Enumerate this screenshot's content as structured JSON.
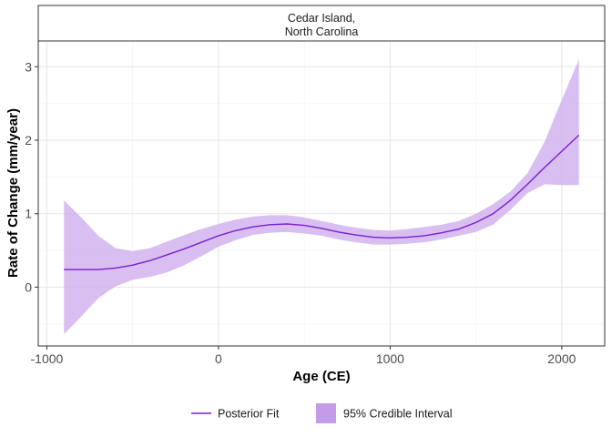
{
  "chart_data": {
    "type": "line",
    "panel_title": "Cedar Island,\nNorth Carolina",
    "panel_title_lines": [
      "Cedar Island,",
      "North Carolina"
    ],
    "xlabel": "Age (CE)",
    "ylabel": "Rate of Change (mm/year)",
    "xlim": [
      -1050,
      2250
    ],
    "ylim": [
      -0.8,
      3.35
    ],
    "x_ticks": [
      -1000,
      0,
      1000,
      2000
    ],
    "x_tick_labels": [
      "-1000",
      "0",
      "1000",
      "2000"
    ],
    "y_ticks": [
      0,
      1,
      2,
      3
    ],
    "y_tick_labels": [
      "0",
      "1",
      "2",
      "3"
    ],
    "grid": true,
    "legend_position": "bottom",
    "colors": {
      "line": "#7b1fd1",
      "band": "#d2b3ef",
      "legend_band": "#c39be6"
    },
    "series": [
      {
        "name": "Posterior Fit",
        "kind": "line",
        "x": [
          -900,
          -800,
          -700,
          -600,
          -500,
          -400,
          -300,
          -200,
          -100,
          0,
          100,
          200,
          300,
          400,
          500,
          600,
          700,
          800,
          900,
          1000,
          1100,
          1200,
          1300,
          1400,
          1500,
          1600,
          1700,
          1800,
          1900,
          2000,
          2100
        ],
        "y": [
          0.24,
          0.24,
          0.24,
          0.26,
          0.3,
          0.36,
          0.44,
          0.52,
          0.61,
          0.7,
          0.77,
          0.82,
          0.85,
          0.86,
          0.84,
          0.8,
          0.75,
          0.71,
          0.68,
          0.67,
          0.68,
          0.7,
          0.74,
          0.79,
          0.88,
          1.0,
          1.18,
          1.4,
          1.63,
          1.85,
          2.07
        ]
      },
      {
        "name": "95% Credible Interval",
        "kind": "band",
        "x": [
          -900,
          -800,
          -700,
          -600,
          -500,
          -400,
          -300,
          -200,
          -100,
          0,
          100,
          200,
          300,
          400,
          500,
          600,
          700,
          800,
          900,
          1000,
          1100,
          1200,
          1300,
          1400,
          1500,
          1600,
          1700,
          1800,
          1900,
          2000,
          2100
        ],
        "lower": [
          -0.64,
          -0.4,
          -0.15,
          0.01,
          0.1,
          0.14,
          0.2,
          0.3,
          0.42,
          0.55,
          0.64,
          0.71,
          0.74,
          0.75,
          0.73,
          0.7,
          0.65,
          0.61,
          0.58,
          0.58,
          0.59,
          0.61,
          0.65,
          0.7,
          0.75,
          0.85,
          1.05,
          1.28,
          1.4,
          1.39,
          1.39
        ],
        "upper": [
          1.18,
          0.95,
          0.7,
          0.53,
          0.49,
          0.53,
          0.62,
          0.71,
          0.79,
          0.86,
          0.92,
          0.96,
          0.98,
          0.98,
          0.95,
          0.9,
          0.85,
          0.81,
          0.78,
          0.77,
          0.79,
          0.82,
          0.85,
          0.9,
          1.0,
          1.13,
          1.3,
          1.55,
          1.98,
          2.55,
          3.1
        ]
      }
    ]
  },
  "legend": {
    "line_label": "Posterior Fit",
    "band_label": "95% Credible Interval"
  }
}
